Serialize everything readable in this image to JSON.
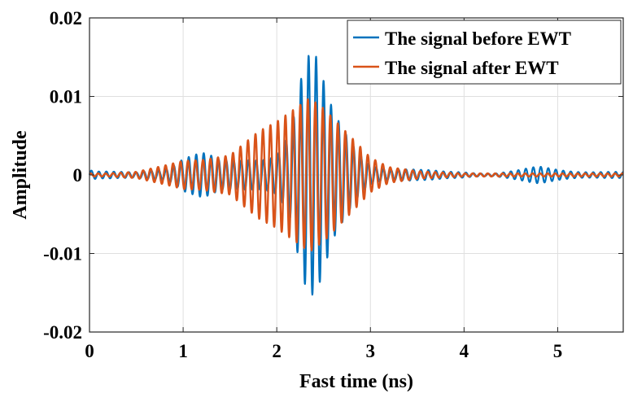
{
  "chart_data": {
    "type": "line",
    "xlabel": "Fast time (ns)",
    "ylabel": "Amplitude",
    "xlim": [
      0,
      5.7
    ],
    "ylim": [
      -0.02,
      0.02
    ],
    "x_ticks": [
      0,
      1,
      2,
      3,
      4,
      5
    ],
    "x_tick_labels": [
      "0",
      "1",
      "2",
      "3",
      "4",
      "5"
    ],
    "y_ticks": [
      -0.02,
      -0.01,
      0,
      0.01,
      0.02
    ],
    "y_tick_labels": [
      "-0.02",
      "-0.01",
      "0",
      "0.01",
      "0.02"
    ],
    "grid": true,
    "legend_position": "top-right",
    "series": [
      {
        "name": "The signal before EWT",
        "color": "#0072BD",
        "carrier_freq_per_ns": 12.5,
        "envelope_x": [
          0,
          0.1,
          0.3,
          0.5,
          0.8,
          1.0,
          1.2,
          1.4,
          1.6,
          1.8,
          2.0,
          2.15,
          2.25,
          2.33,
          2.42,
          2.5,
          2.6,
          2.75,
          2.9,
          3.0,
          3.2,
          3.5,
          3.8,
          4.0,
          4.3,
          4.6,
          4.8,
          5.0,
          5.3,
          5.5,
          5.7
        ],
        "envelope_y": [
          0.0008,
          0.0005,
          0.0004,
          0.0004,
          0.0015,
          0.0037,
          0.0033,
          0.0018,
          0.0022,
          0.0035,
          0.0055,
          0.0095,
          0.0155,
          0.0172,
          0.0155,
          0.012,
          0.0085,
          0.0065,
          0.0045,
          0.0028,
          0.0012,
          0.0007,
          0.0005,
          0.0006,
          0.0003,
          0.0007,
          0.0011,
          0.0009,
          0.0008,
          0.0006,
          0.0004
        ]
      },
      {
        "name": "The signal after EWT",
        "color": "#D95319",
        "carrier_freq_per_ns": 12.5,
        "envelope_x": [
          0,
          0.2,
          0.5,
          0.8,
          1.0,
          1.2,
          1.5,
          1.8,
          2.0,
          2.2,
          2.35,
          2.5,
          2.7,
          2.9,
          3.0,
          3.2,
          3.5,
          3.8,
          4.0,
          4.5,
          5.0,
          5.7
        ],
        "envelope_y": [
          0.0002,
          0.0002,
          0.0004,
          0.0012,
          0.0018,
          0.0019,
          0.0025,
          0.0055,
          0.0068,
          0.0085,
          0.0098,
          0.0085,
          0.006,
          0.0035,
          0.0022,
          0.001,
          0.0005,
          0.0003,
          0.0002,
          0.0002,
          0.0002,
          0.0002
        ]
      }
    ]
  }
}
